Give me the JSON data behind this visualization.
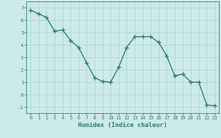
{
  "x": [
    0,
    1,
    2,
    3,
    4,
    5,
    6,
    7,
    8,
    9,
    10,
    11,
    12,
    13,
    14,
    15,
    16,
    17,
    18,
    19,
    20,
    21,
    22,
    23
  ],
  "y": [
    6.8,
    6.5,
    6.2,
    5.1,
    5.2,
    4.35,
    3.8,
    2.55,
    1.35,
    1.05,
    1.0,
    2.2,
    3.8,
    4.65,
    4.65,
    4.65,
    4.2,
    3.1,
    1.5,
    1.65,
    1.0,
    1.0,
    -0.85,
    -0.9
  ],
  "line_color": "#2e7b6e",
  "marker": "+",
  "background_color": "#cceae7",
  "grid_color": "#b0d4d0",
  "xlabel": "Humidex (Indice chaleur)",
  "xlim": [
    -0.5,
    23.5
  ],
  "ylim": [
    -1.5,
    7.5
  ],
  "yticks": [
    -1,
    0,
    1,
    2,
    3,
    4,
    5,
    6,
    7
  ],
  "xticks": [
    0,
    1,
    2,
    3,
    4,
    5,
    6,
    7,
    8,
    9,
    10,
    11,
    12,
    13,
    14,
    15,
    16,
    17,
    18,
    19,
    20,
    21,
    22,
    23
  ],
  "tick_color": "#2e7b6e",
  "label_color": "#2e7b6e",
  "linewidth": 1.0,
  "markersize": 4,
  "tick_fontsize": 5.0,
  "xlabel_fontsize": 6.5
}
